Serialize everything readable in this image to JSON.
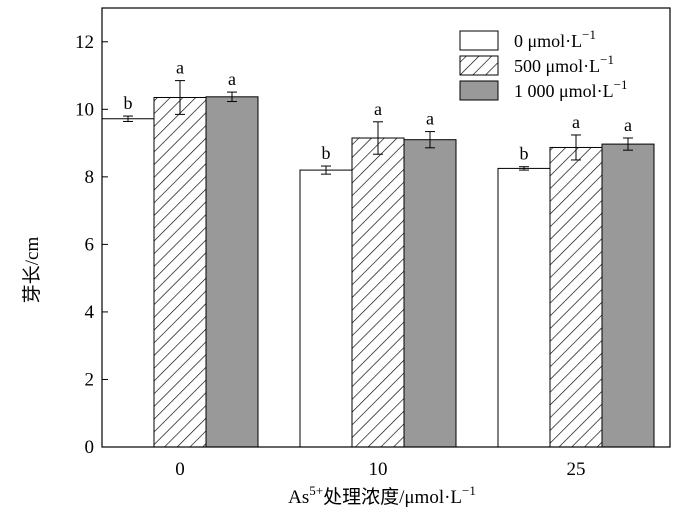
{
  "chart_data": {
    "type": "bar",
    "xlabel": "As5+处理浓度/μmol·L−1",
    "ylabel": "芽长/cm",
    "ylim": [
      0,
      13
    ],
    "yticks": [
      0,
      2,
      4,
      6,
      8,
      10,
      12
    ],
    "categories": [
      "0",
      "10",
      "25"
    ],
    "series": [
      {
        "name": "0 μmol·L−1",
        "fill": "white",
        "values": [
          9.72,
          8.2,
          8.25
        ],
        "errors": [
          0.08,
          0.12,
          0.05
        ],
        "labels": [
          "b",
          "b",
          "b"
        ]
      },
      {
        "name": "500 μmol·L−1",
        "fill": "hatch",
        "values": [
          10.35,
          9.15,
          8.87
        ],
        "errors": [
          0.5,
          0.48,
          0.37
        ],
        "labels": [
          "a",
          "a",
          "a"
        ]
      },
      {
        "name": "1 000 μmol·L−1",
        "fill": "gray",
        "values": [
          10.37,
          9.1,
          8.97
        ],
        "errors": [
          0.14,
          0.24,
          0.18
        ],
        "labels": [
          "a",
          "a",
          "a"
        ]
      }
    ],
    "legend_position": "top-right",
    "grid": false
  },
  "legend": {
    "series0_num": "0 μmol·L",
    "series0_exp": "−1",
    "series1_num": "500 μmol·L",
    "series1_exp": "−1",
    "series2_num": "1 000 μmol·L",
    "series2_exp": "−1"
  },
  "axis": {
    "ylabel": "芽长/cm",
    "xlabel_pre": "As",
    "xlabel_sup": "5+",
    "xlabel_mid": "处理浓度/μmol·L",
    "xlabel_exp": "−1"
  },
  "colors": {
    "bar_white": "#ffffff",
    "bar_gray": "#999999",
    "stroke": "#000000"
  }
}
